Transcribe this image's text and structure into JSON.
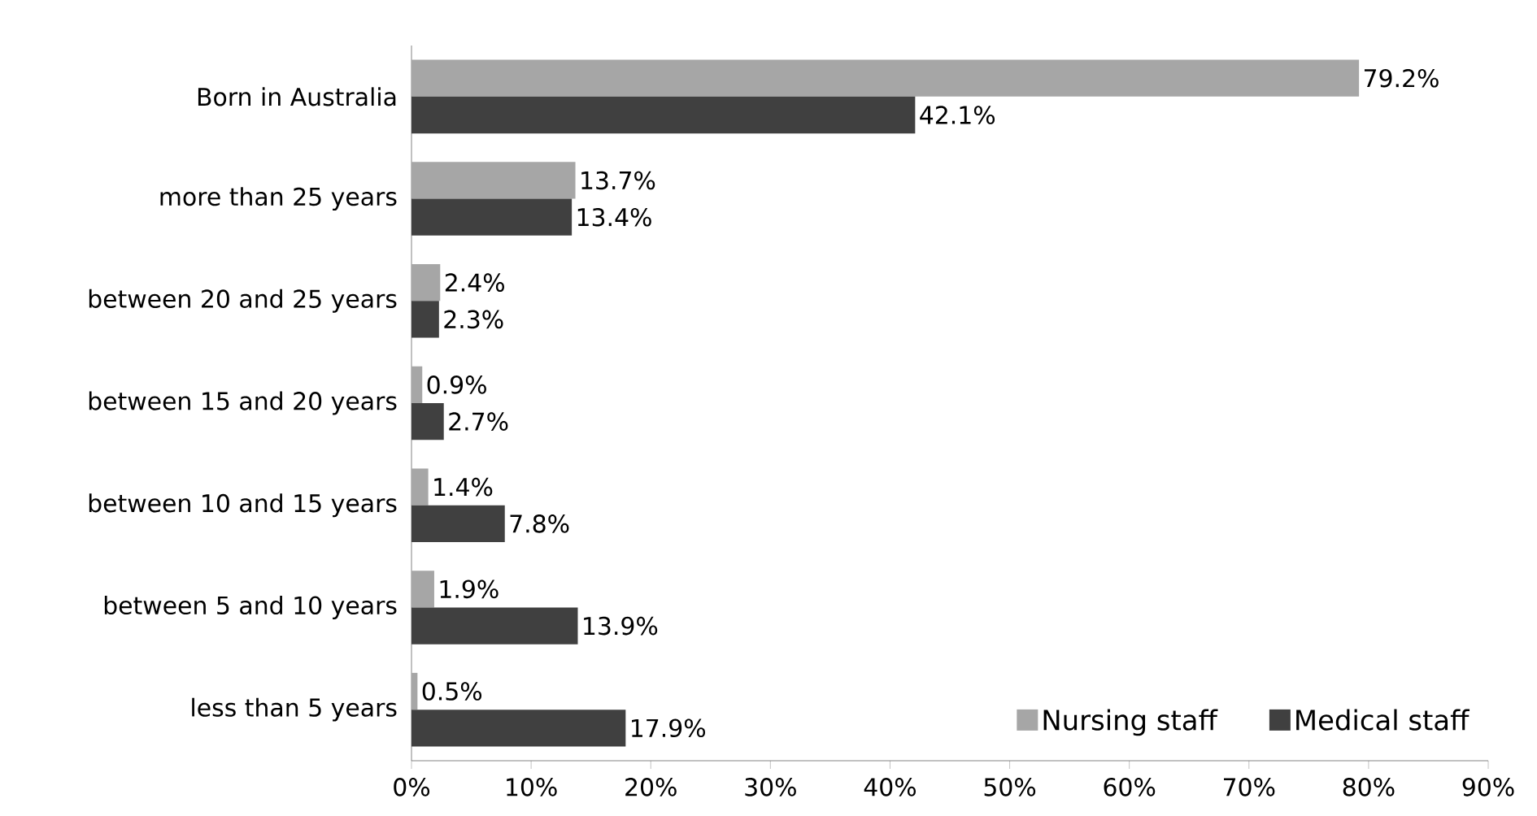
{
  "chart_data": {
    "type": "bar",
    "orientation": "horizontal",
    "categories": [
      "Born in Australia",
      "more than 25 years",
      "between 20 and 25 years",
      "between 15 and 20 years",
      "between 10 and 15 years",
      "between 5 and 10 years",
      "less than 5 years"
    ],
    "series": [
      {
        "name": "Nursing staff",
        "color": "#a6a6a6",
        "values": [
          79.2,
          13.7,
          2.4,
          0.9,
          1.4,
          1.9,
          0.5
        ],
        "value_labels": [
          "79.2%",
          "13.7%",
          "2.4%",
          "0.9%",
          "1.4%",
          "1.9%",
          "0.5%"
        ]
      },
      {
        "name": "Medical staff",
        "color": "#404040",
        "values": [
          42.1,
          13.4,
          2.3,
          2.7,
          7.8,
          13.9,
          17.9
        ],
        "value_labels": [
          "42.1%",
          "13.4%",
          "2.3%",
          "2.7%",
          "7.8%",
          "13.9%",
          "17.9%"
        ]
      }
    ],
    "xlim": [
      0,
      90
    ],
    "xticks": [
      {
        "value": 0,
        "label": "0%"
      },
      {
        "value": 10,
        "label": "10%"
      },
      {
        "value": 20,
        "label": "20%"
      },
      {
        "value": 30,
        "label": "30%"
      },
      {
        "value": 40,
        "label": "40%"
      },
      {
        "value": 50,
        "label": "50%"
      },
      {
        "value": 60,
        "label": "60%"
      },
      {
        "value": 70,
        "label": "70%"
      },
      {
        "value": 80,
        "label": "80%"
      },
      {
        "value": 90,
        "label": "90%"
      }
    ],
    "grid": false,
    "legend": "bottom right"
  }
}
